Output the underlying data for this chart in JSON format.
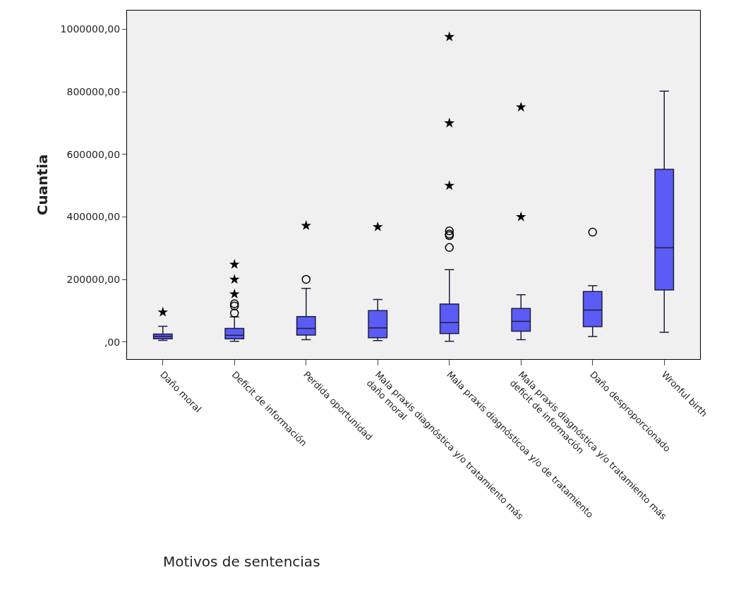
{
  "chart_data": {
    "type": "box",
    "xlabel": "Motivos de sentencias",
    "ylabel": "Cuantia",
    "categories": [
      "Daño moral",
      "Deficit de información",
      "Perdida oportunidad",
      "Mala praxis diagnóstica y/o tratamiento más\ndaño moral",
      "Mala praxis diagnósticoa y/o de tratamiento",
      "Mala praxis diagnóstica y/o tratamiento más\ndeficit de información",
      "Daño desproporcionado",
      "Wronful birth"
    ],
    "series": [
      {
        "color": "#5b5bf5",
        "boxes": [
          {
            "low": 5000,
            "q1": 10000,
            "median": 18000,
            "q3": 25000,
            "high": 50000
          },
          {
            "low": 2000,
            "q1": 10000,
            "median": 21000,
            "q3": 43000,
            "high": 80000,
            "outliers": [
              92000,
              115000,
              122000
            ]
          },
          {
            "low": 7000,
            "q1": 22000,
            "median": 43000,
            "q3": 81000,
            "high": 171000,
            "outliers": [
              200000
            ]
          },
          {
            "low": 4000,
            "q1": 13000,
            "median": 45000,
            "q3": 100000,
            "high": 136000
          },
          {
            "low": 2000,
            "q1": 27000,
            "median": 62000,
            "q3": 121000,
            "high": 231000,
            "outliers": [
              302000,
              340000,
              345000,
              355000
            ]
          },
          {
            "low": 7000,
            "q1": 34000,
            "median": 66000,
            "q3": 107000,
            "high": 151000
          },
          {
            "low": 17000,
            "q1": 49000,
            "median": 102000,
            "q3": 161000,
            "high": 180000,
            "outliers": [
              351000
            ]
          },
          {
            "low": 31000,
            "q1": 166000,
            "median": 301000,
            "q3": 552000,
            "high": 802000
          }
        ]
      },
      {
        "type": "scatter",
        "marker": "star",
        "color": "#000000",
        "x": [
          "Daño moral",
          "Deficit de información",
          "Deficit de información",
          "Deficit de información",
          "Perdida oportunidad",
          "Mala praxis diagnóstica y/o tratamiento más\ndaño moral",
          "Mala praxis diagnósticoa y/o de tratamiento",
          "Mala praxis diagnósticoa y/o de tratamiento",
          "Mala praxis diagnósticoa y/o de tratamiento",
          "Mala praxis diagnóstica y/o tratamiento más\ndeficit de información",
          "Mala praxis diagnóstica y/o tratamiento más\ndeficit de información"
        ],
        "values": [
          95000,
          153000,
          200000,
          248000,
          372000,
          368000,
          500000,
          700000,
          976000,
          400000,
          751000
        ]
      }
    ],
    "ylim": [
      -55000,
      1060000
    ],
    "yticks": [
      {
        "value": 0,
        "label": ",00"
      },
      {
        "value": 200000,
        "label": "200000,00"
      },
      {
        "value": 400000,
        "label": "400000,00"
      },
      {
        "value": 600000,
        "label": "600000,00"
      },
      {
        "value": 800000,
        "label": "800000,00"
      },
      {
        "value": 1000000,
        "label": "1000000,00"
      }
    ],
    "grid": false
  }
}
